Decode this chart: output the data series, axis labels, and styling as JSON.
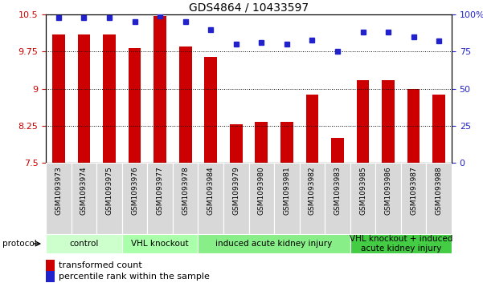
{
  "title": "GDS4864 / 10433597",
  "samples": [
    "GSM1093973",
    "GSM1093974",
    "GSM1093975",
    "GSM1093976",
    "GSM1093977",
    "GSM1093978",
    "GSM1093984",
    "GSM1093979",
    "GSM1093980",
    "GSM1093981",
    "GSM1093982",
    "GSM1093983",
    "GSM1093985",
    "GSM1093986",
    "GSM1093987",
    "GSM1093988"
  ],
  "bar_values": [
    10.1,
    10.1,
    10.1,
    9.82,
    10.47,
    9.85,
    9.65,
    8.28,
    8.33,
    8.33,
    8.88,
    8.0,
    9.18,
    9.18,
    9.0,
    8.88
  ],
  "dot_values": [
    98,
    98,
    98,
    95,
    99,
    95,
    90,
    80,
    81,
    80,
    83,
    75,
    88,
    88,
    85,
    82
  ],
  "ylim_left": [
    7.5,
    10.5
  ],
  "ylim_right": [
    0,
    100
  ],
  "yticks_left": [
    7.5,
    8.25,
    9.0,
    9.75,
    10.5
  ],
  "yticks_right": [
    0,
    25,
    50,
    75,
    100
  ],
  "bar_color": "#cc0000",
  "dot_color": "#2222cc",
  "background_color": "#ffffff",
  "protocols": [
    {
      "label": "control",
      "start": 0,
      "end": 3,
      "color": "#ccffcc"
    },
    {
      "label": "VHL knockout",
      "start": 3,
      "end": 6,
      "color": "#aaffaa"
    },
    {
      "label": "induced acute kidney injury",
      "start": 6,
      "end": 12,
      "color": "#88ee88"
    },
    {
      "label": "VHL knockout + induced\nacute kidney injury",
      "start": 12,
      "end": 16,
      "color": "#44cc44"
    }
  ],
  "protocol_label": "protocol",
  "legend_bar_label": "transformed count",
  "legend_dot_label": "percentile rank within the sample",
  "title_fontsize": 10,
  "sample_fontsize": 6.5,
  "axis_tick_fontsize": 8,
  "proto_fontsize": 7.5,
  "legend_fontsize": 8
}
